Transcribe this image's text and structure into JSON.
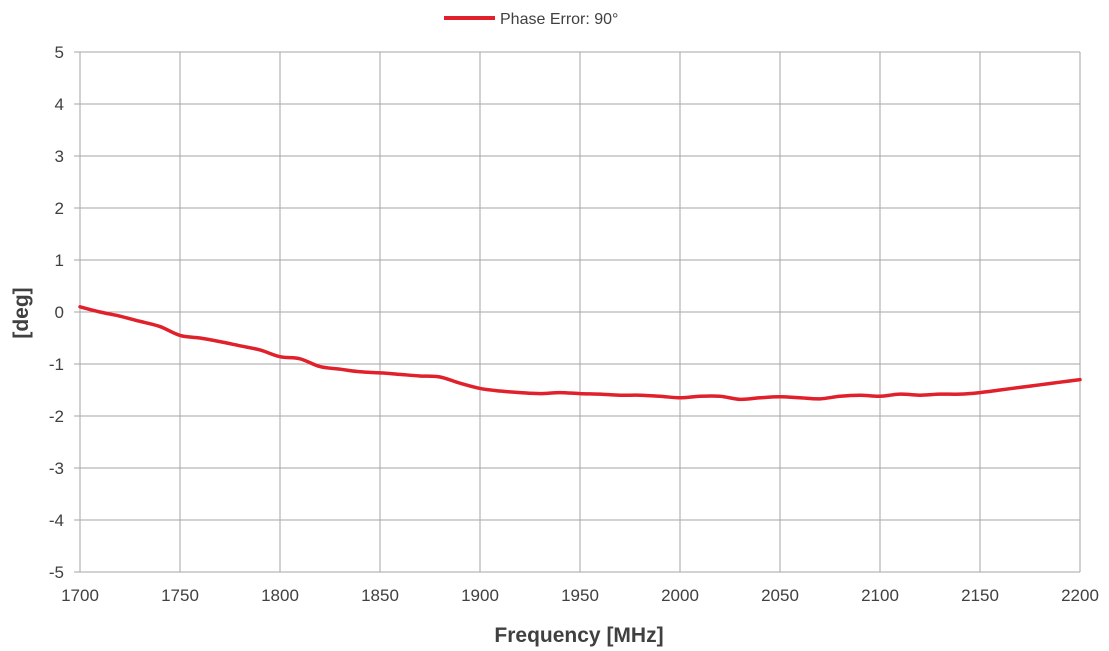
{
  "chart_data": {
    "type": "line",
    "title": "",
    "xlabel": "Frequency [MHz]",
    "ylabel": "[deg]",
    "xlim": [
      1700,
      2200
    ],
    "ylim": [
      -5,
      5
    ],
    "x_ticks": [
      "1700",
      "1750",
      "1800",
      "1850",
      "1900",
      "1950",
      "2000",
      "2050",
      "2100",
      "2150",
      "2200"
    ],
    "y_ticks": [
      "5",
      "4",
      "3",
      "2",
      "1",
      "0",
      "-1",
      "-2",
      "-3",
      "-4",
      "-5"
    ],
    "grid": true,
    "legend_position": "top-center",
    "series": [
      {
        "name": "Phase Error: 90°",
        "color": "#e0202a",
        "x": [
          1700,
          1710,
          1720,
          1730,
          1740,
          1750,
          1760,
          1770,
          1780,
          1790,
          1800,
          1810,
          1820,
          1830,
          1840,
          1850,
          1860,
          1870,
          1880,
          1890,
          1900,
          1910,
          1920,
          1930,
          1940,
          1950,
          1960,
          1970,
          1980,
          1990,
          2000,
          2010,
          2020,
          2030,
          2040,
          2050,
          2060,
          2070,
          2080,
          2090,
          2100,
          2110,
          2120,
          2130,
          2140,
          2150,
          2160,
          2170,
          2180,
          2190,
          2200
        ],
        "y": [
          0.1,
          0.0,
          -0.08,
          -0.18,
          -0.28,
          -0.45,
          -0.5,
          -0.57,
          -0.65,
          -0.73,
          -0.86,
          -0.9,
          -1.05,
          -1.1,
          -1.15,
          -1.17,
          -1.2,
          -1.23,
          -1.25,
          -1.37,
          -1.47,
          -1.52,
          -1.55,
          -1.57,
          -1.55,
          -1.57,
          -1.58,
          -1.6,
          -1.6,
          -1.62,
          -1.65,
          -1.62,
          -1.62,
          -1.68,
          -1.65,
          -1.63,
          -1.65,
          -1.67,
          -1.62,
          -1.6,
          -1.62,
          -1.58,
          -1.6,
          -1.58,
          -1.58,
          -1.55,
          -1.5,
          -1.45,
          -1.4,
          -1.35,
          -1.3
        ]
      }
    ]
  }
}
